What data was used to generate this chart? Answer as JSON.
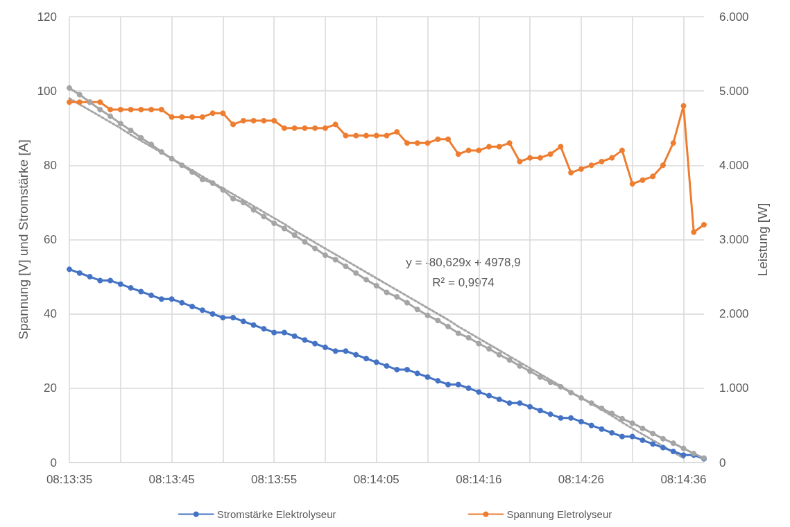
{
  "chart_data": {
    "type": "line",
    "ylabel": "Spannung [V] und Stromstärke [A]",
    "y2label": "Leistung [W]",
    "categories": [
      "08:13:35",
      null,
      null,
      null,
      null,
      null,
      null,
      null,
      null,
      null,
      "08:13:45",
      null,
      null,
      null,
      null,
      null,
      null,
      null,
      null,
      null,
      "08:13:55",
      null,
      null,
      null,
      null,
      null,
      null,
      null,
      null,
      null,
      "08:14:05",
      null,
      null,
      null,
      null,
      null,
      null,
      null,
      null,
      null,
      "08:14:16",
      null,
      null,
      null,
      null,
      null,
      null,
      null,
      null,
      null,
      "08:14:26",
      null,
      null,
      null,
      null,
      null,
      null,
      null,
      null,
      null,
      "08:14:36",
      null,
      null
    ],
    "ylim": [
      0,
      120
    ],
    "yticks": [
      0,
      20,
      40,
      60,
      80,
      100,
      120
    ],
    "y2lim": [
      0,
      6000
    ],
    "y2ticks": [
      0,
      {
        "value": 1000,
        "label": "1.000"
      },
      {
        "value": 2000,
        "label": "2.000"
      },
      {
        "value": 3000,
        "label": "3.000"
      },
      {
        "value": 4000,
        "label": "4.000"
      },
      {
        "value": 5000,
        "label": "5.000"
      },
      {
        "value": 6000,
        "label": "6.000"
      }
    ],
    "grid": true,
    "legend": "bottom",
    "marker": "circle",
    "line_style": "solid",
    "annotations": [
      "y = -80,629x + 4978,9",
      "R² = 0,9974"
    ],
    "series": [
      {
        "name": "Stromstärke Elektrolyseur",
        "color": "#4472c4",
        "values": [
          52,
          51,
          50,
          49,
          49,
          48,
          47,
          46,
          45,
          44,
          44,
          43,
          42,
          41,
          40,
          39,
          39,
          38,
          37,
          36,
          35,
          35,
          34,
          33,
          32,
          31,
          30,
          30,
          29,
          28,
          27,
          26,
          25,
          25,
          24,
          23,
          22,
          21,
          21,
          20,
          19,
          18,
          17,
          16,
          16,
          15,
          14,
          13,
          12,
          12,
          11,
          10,
          9,
          8,
          7,
          7,
          6,
          5,
          4,
          3,
          2,
          2,
          1
        ]
      },
      {
        "name": "Spannung Eletrolyseur",
        "color": "#ed7d31",
        "values": [
          97,
          97,
          97,
          97,
          95,
          95,
          95,
          95,
          95,
          95,
          93,
          93,
          93,
          93,
          94,
          94,
          91,
          92,
          92,
          92,
          92,
          90,
          90,
          90,
          90,
          90,
          91,
          88,
          88,
          88,
          88,
          88,
          89,
          86,
          86,
          86,
          87,
          87,
          83,
          84,
          84,
          85,
          85,
          86,
          81,
          82,
          82,
          83,
          85,
          78,
          79,
          80,
          81,
          82,
          84,
          75,
          76,
          77,
          80,
          86,
          96,
          62,
          64
        ]
      },
      {
        "color": "#a5a5a5",
        "axis": "y2",
        "values": [
          5040,
          4950,
          4850,
          4750,
          4660,
          4560,
          4470,
          4370,
          4280,
          4180,
          4090,
          4000,
          3910,
          3810,
          3760,
          3670,
          3550,
          3500,
          3400,
          3310,
          3220,
          3150,
          3060,
          2970,
          2880,
          2790,
          2730,
          2640,
          2550,
          2460,
          2380,
          2290,
          2230,
          2150,
          2060,
          1980,
          1910,
          1830,
          1740,
          1680,
          1600,
          1530,
          1450,
          1380,
          1300,
          1230,
          1150,
          1080,
          1020,
          940,
          870,
          800,
          730,
          660,
          590,
          530,
          460,
          390,
          320,
          260,
          190,
          120,
          60
        ]
      },
      {
        "type": "line",
        "color": "#a5a5a5",
        "axis": "y2",
        "marker": "none",
        "line_style": "dotted",
        "values": [
          4900,
          4820,
          4740,
          4660,
          4580,
          4500,
          4410,
          4330,
          4250,
          4170,
          4090,
          4010,
          3930,
          3850,
          3770,
          3690,
          3610,
          3530,
          3450,
          3370,
          3290,
          3210,
          3120,
          3040,
          2960,
          2880,
          2800,
          2720,
          2640,
          2560,
          2480,
          2400,
          2320,
          2240,
          2160,
          2080,
          2000,
          1920,
          1830,
          1750,
          1670,
          1590,
          1510,
          1430,
          1350,
          1270,
          1190,
          1110,
          1030,
          950,
          870,
          790,
          710,
          630,
          540,
          460,
          380,
          300,
          220,
          140,
          60,
          null,
          null
        ]
      }
    ]
  }
}
